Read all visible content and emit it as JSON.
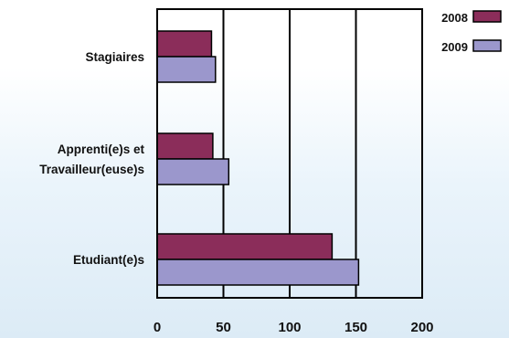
{
  "chart_data": {
    "type": "bar",
    "orientation": "horizontal",
    "categories": [
      [
        "Stagiaires"
      ],
      [
        "Apprenti(e)s et",
        "Travailleur(euse)s"
      ],
      [
        "Etudiant(e)s"
      ]
    ],
    "series": [
      {
        "name": "2008",
        "values": [
          41,
          42,
          132
        ],
        "color": "#8b2d5a"
      },
      {
        "name": "2009",
        "values": [
          44,
          54,
          152
        ],
        "color": "#9b97cc"
      }
    ],
    "xlim": [
      0,
      200
    ],
    "xticks": [
      0,
      50,
      100,
      150,
      200
    ],
    "grid": "vertical",
    "legend": "top-right",
    "title": "",
    "xlabel": "",
    "ylabel": ""
  }
}
